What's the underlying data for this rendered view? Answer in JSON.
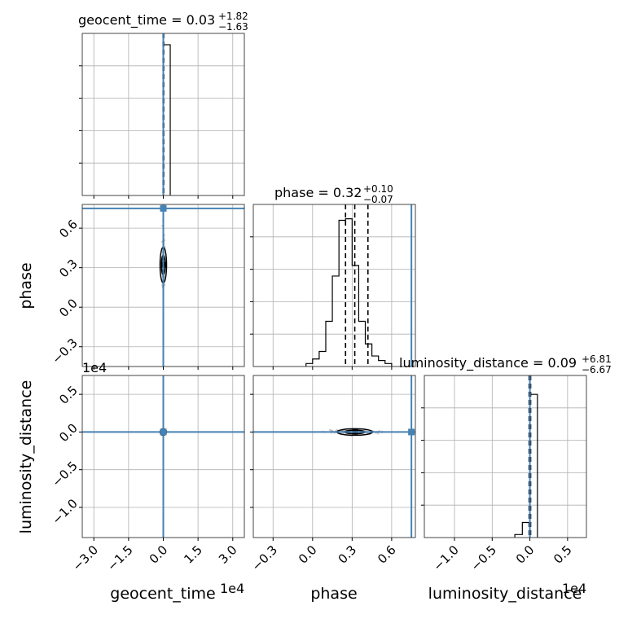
{
  "colors": {
    "truth": "#4682b4",
    "hist": "#000000",
    "grid": "#b0b0b0",
    "scatter": "#9e9e9e"
  },
  "chart_data": {
    "type": "corner",
    "truths": {
      "geocent_time": 0.0,
      "phase": 0.75,
      "luminosity_distance": 0.0
    },
    "params": [
      {
        "name": "geocent_time",
        "title_value": "0.03",
        "title_plus": "+1.82",
        "title_minus": "−1.63",
        "xlabel": "geocent_time",
        "sci": "1e4",
        "range": [
          -3.5,
          3.5
        ],
        "ticks": [
          -3.0,
          -1.5,
          0.0,
          1.5,
          3.0
        ],
        "tick_labels": [
          "−3.0",
          "−1.5",
          "0.0",
          "1.5",
          "3.0"
        ],
        "quantiles": [
          -0.01,
          0.0,
          0.02
        ],
        "hist": {
          "edges": [
            -0.03,
            0.0,
            0.3
          ],
          "counts": [
            0,
            1.0
          ]
        }
      },
      {
        "name": "phase",
        "title_value": "0.32",
        "title_plus": "+0.10",
        "title_minus": "−0.07",
        "xlabel": "phase",
        "ylabel": "phase",
        "range": [
          -0.45,
          0.78
        ],
        "ticks": [
          -0.3,
          0.0,
          0.3,
          0.6
        ],
        "tick_labels": [
          "−0.3",
          "0.0",
          "0.3",
          "0.6"
        ],
        "quantiles": [
          0.25,
          0.32,
          0.42
        ],
        "hist": {
          "edges": [
            -0.05,
            0.0,
            0.05,
            0.1,
            0.15,
            0.2,
            0.25,
            0.3,
            0.35,
            0.4,
            0.45,
            0.5,
            0.55,
            0.6
          ],
          "counts": [
            0.02,
            0.05,
            0.1,
            0.3,
            0.6,
            0.97,
            0.98,
            0.67,
            0.3,
            0.15,
            0.07,
            0.04,
            0.02
          ]
        }
      },
      {
        "name": "luminosity_distance",
        "title_value": "0.09",
        "title_plus": "+6.81",
        "title_minus": "−6.67",
        "xlabel": "luminosity_distance",
        "ylabel": "luminosity_distance",
        "sci": "1e4",
        "range": [
          -1.4,
          0.75
        ],
        "ticks": [
          -1.0,
          -0.5,
          0.0,
          0.5
        ],
        "tick_labels": [
          "−1.0",
          "−0.5",
          "0.0",
          "0.5"
        ],
        "quantiles": [
          -0.01,
          0.0,
          0.01
        ],
        "hist": {
          "edges": [
            -0.2,
            -0.1,
            0.0,
            0.1
          ],
          "counts": [
            0.02,
            0.1,
            0.95
          ]
        }
      }
    ],
    "grid": true
  }
}
